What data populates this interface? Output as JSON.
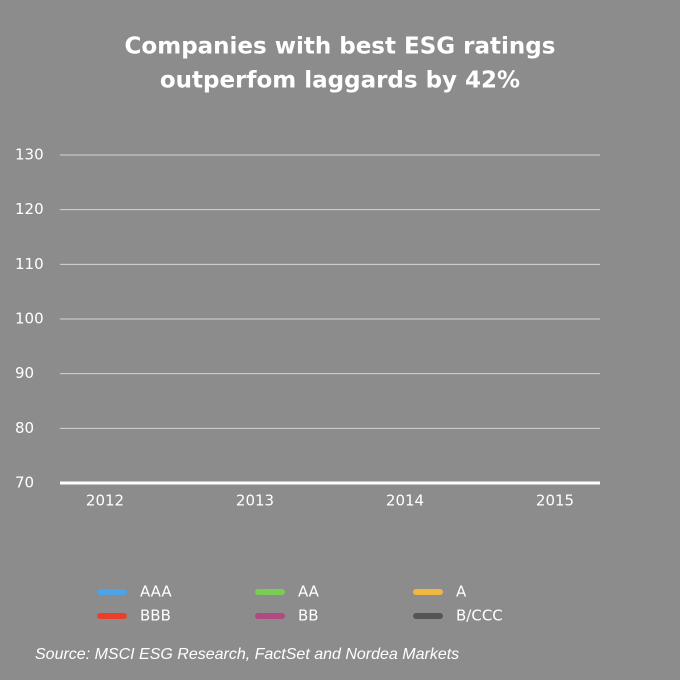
{
  "chart_data": {
    "type": "line",
    "title": [
      "Companies with best ESG ratings",
      "outperfom laggards by 42%"
    ],
    "categories": [
      "2012",
      "2013",
      "2014",
      "2015"
    ],
    "series": [
      {
        "name": "AAA",
        "color": "#4da3e8",
        "values": [
          null,
          null,
          null,
          null
        ]
      },
      {
        "name": "AA",
        "color": "#7acc55",
        "values": [
          null,
          null,
          null,
          null
        ]
      },
      {
        "name": "A",
        "color": "#f0b840",
        "values": [
          null,
          null,
          null,
          null
        ]
      },
      {
        "name": "BBB",
        "color": "#e8402a",
        "values": [
          null,
          null,
          null,
          null
        ]
      },
      {
        "name": "BB",
        "color": "#b04a80",
        "values": [
          null,
          null,
          null,
          null
        ]
      },
      {
        "name": "B/CCC",
        "color": "#555555",
        "values": [
          null,
          null,
          null,
          null
        ]
      }
    ],
    "ylim": [
      70,
      130
    ],
    "yticks": [
      70,
      80,
      90,
      100,
      110,
      120,
      130
    ],
    "grid": true,
    "legend": "bottom",
    "source": "Source: MSCI ESG Research, FactSet and Nordea Markets"
  }
}
